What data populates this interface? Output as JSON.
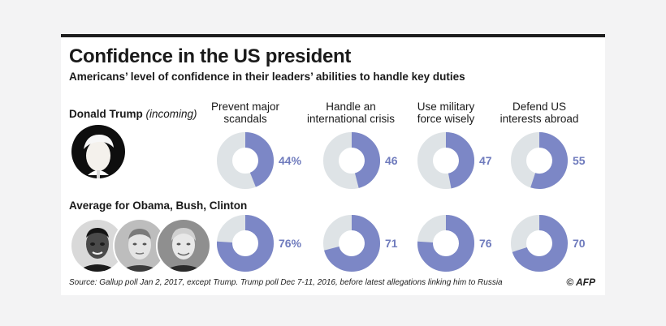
{
  "header": {
    "title": "Confidence in the US president",
    "subtitle": "Americans’ level of confidence in their leaders’ abilities to handle key duties"
  },
  "footer": {
    "source": "Source: Gallup poll Jan 2, 2017, except Trump. Trump poll Dec 7-11, 2016, before latest allegations linking him to Russia",
    "credit": "© AFP"
  },
  "colors": {
    "filled": "#7c87c6",
    "remainder": "#dee3e6",
    "value_text": "#6f7bbd"
  },
  "chart_data": {
    "type": "donut-grid",
    "title": "Confidence in the US president",
    "subtitle": "Americans’ level of confidence in their leaders’ abilities to handle key duties",
    "categories": [
      [
        "Prevent major",
        "scandals"
      ],
      [
        "Handle an",
        "international crisis"
      ],
      [
        "Use military",
        "force wisely"
      ],
      [
        "Defend US",
        "interests abroad"
      ]
    ],
    "series": [
      {
        "name": "Donald Trump",
        "qualifier": "(incoming)",
        "values": [
          44,
          46,
          47,
          55
        ],
        "labels": [
          "44%",
          "46",
          "47",
          "55"
        ]
      },
      {
        "name": "Average for Obama, Bush, Clinton",
        "values": [
          76,
          71,
          76,
          70
        ],
        "labels": [
          "76%",
          "71",
          "76",
          "70"
        ]
      }
    ],
    "max": 100
  }
}
